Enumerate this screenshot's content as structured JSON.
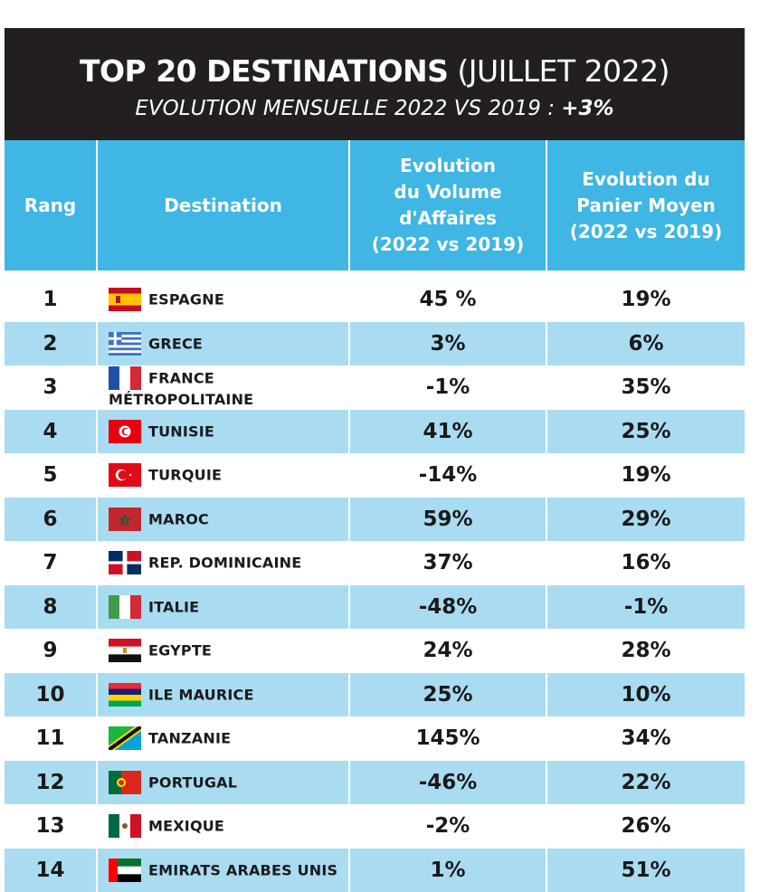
{
  "banner": {
    "title_bold": "TOP 20 DESTINATIONS",
    "title_rest": " (JUILLET 2022)",
    "subtitle": "EVOLUTION MENSUELLE 2022 VS 2019 :",
    "subtitle_value": "+3%"
  },
  "chart_data": {
    "type": "table",
    "columns": [
      "Rang",
      "Destination",
      "Evolution du Volume d'Affaires (2022 vs 2019)",
      "Evolution du Panier Moyen (2022 vs 2019)"
    ],
    "rows": [
      {
        "rang": "1",
        "destination": "ESPAGNE",
        "volume": "45 %",
        "panier": "19%",
        "flag": "spain-flag"
      },
      {
        "rang": "2",
        "destination": "GRECE",
        "volume": "3%",
        "panier": "6%",
        "flag": "greece-flag"
      },
      {
        "rang": "3",
        "destination": "FRANCE MÉTROPOLITAINE",
        "volume": "-1%",
        "panier": "35%",
        "flag": "france-flag"
      },
      {
        "rang": "4",
        "destination": "TUNISIE",
        "volume": "41%",
        "panier": "25%",
        "flag": "tunisia-flag"
      },
      {
        "rang": "5",
        "destination": "TURQUIE",
        "volume": "-14%",
        "panier": "19%",
        "flag": "turkey-flag"
      },
      {
        "rang": "6",
        "destination": "MAROC",
        "volume": "59%",
        "panier": "29%",
        "flag": "morocco-flag"
      },
      {
        "rang": "7",
        "destination": "REP. DOMINICAINE",
        "volume": "37%",
        "panier": "16%",
        "flag": "dominican-republic-flag"
      },
      {
        "rang": "8",
        "destination": "ITALIE",
        "volume": "-48%",
        "panier": "-1%",
        "flag": "italy-flag"
      },
      {
        "rang": "9",
        "destination": "EGYPTE",
        "volume": "24%",
        "panier": "28%",
        "flag": "egypt-flag"
      },
      {
        "rang": "10",
        "destination": "ILE MAURICE",
        "volume": "25%",
        "panier": "10%",
        "flag": "mauritius-flag"
      },
      {
        "rang": "11",
        "destination": "TANZANIE",
        "volume": "145%",
        "panier": "34%",
        "flag": "tanzania-flag"
      },
      {
        "rang": "12",
        "destination": "PORTUGAL",
        "volume": "-46%",
        "panier": "22%",
        "flag": "portugal-flag"
      },
      {
        "rang": "13",
        "destination": "MEXIQUE",
        "volume": "-2%",
        "panier": "26%",
        "flag": "mexico-flag"
      },
      {
        "rang": "14",
        "destination": "EMIRATS ARABES UNIS",
        "volume": "1%",
        "panier": "51%",
        "flag": "uae-flag"
      }
    ]
  },
  "header": {
    "rang": "Rang",
    "destination": "Destination",
    "volume_l1": "Evolution",
    "volume_l2": "du Volume",
    "volume_l3": "d'Affaires",
    "volume_l4": "(2022 vs 2019)",
    "panier_l1": "Evolution du",
    "panier_l2": "Panier Moyen",
    "panier_l3": "(2022 vs 2019)"
  },
  "colors": {
    "banner_bg": "#231f20",
    "header_bg": "#3fb6e3",
    "stripe": "#a9dcf1"
  }
}
